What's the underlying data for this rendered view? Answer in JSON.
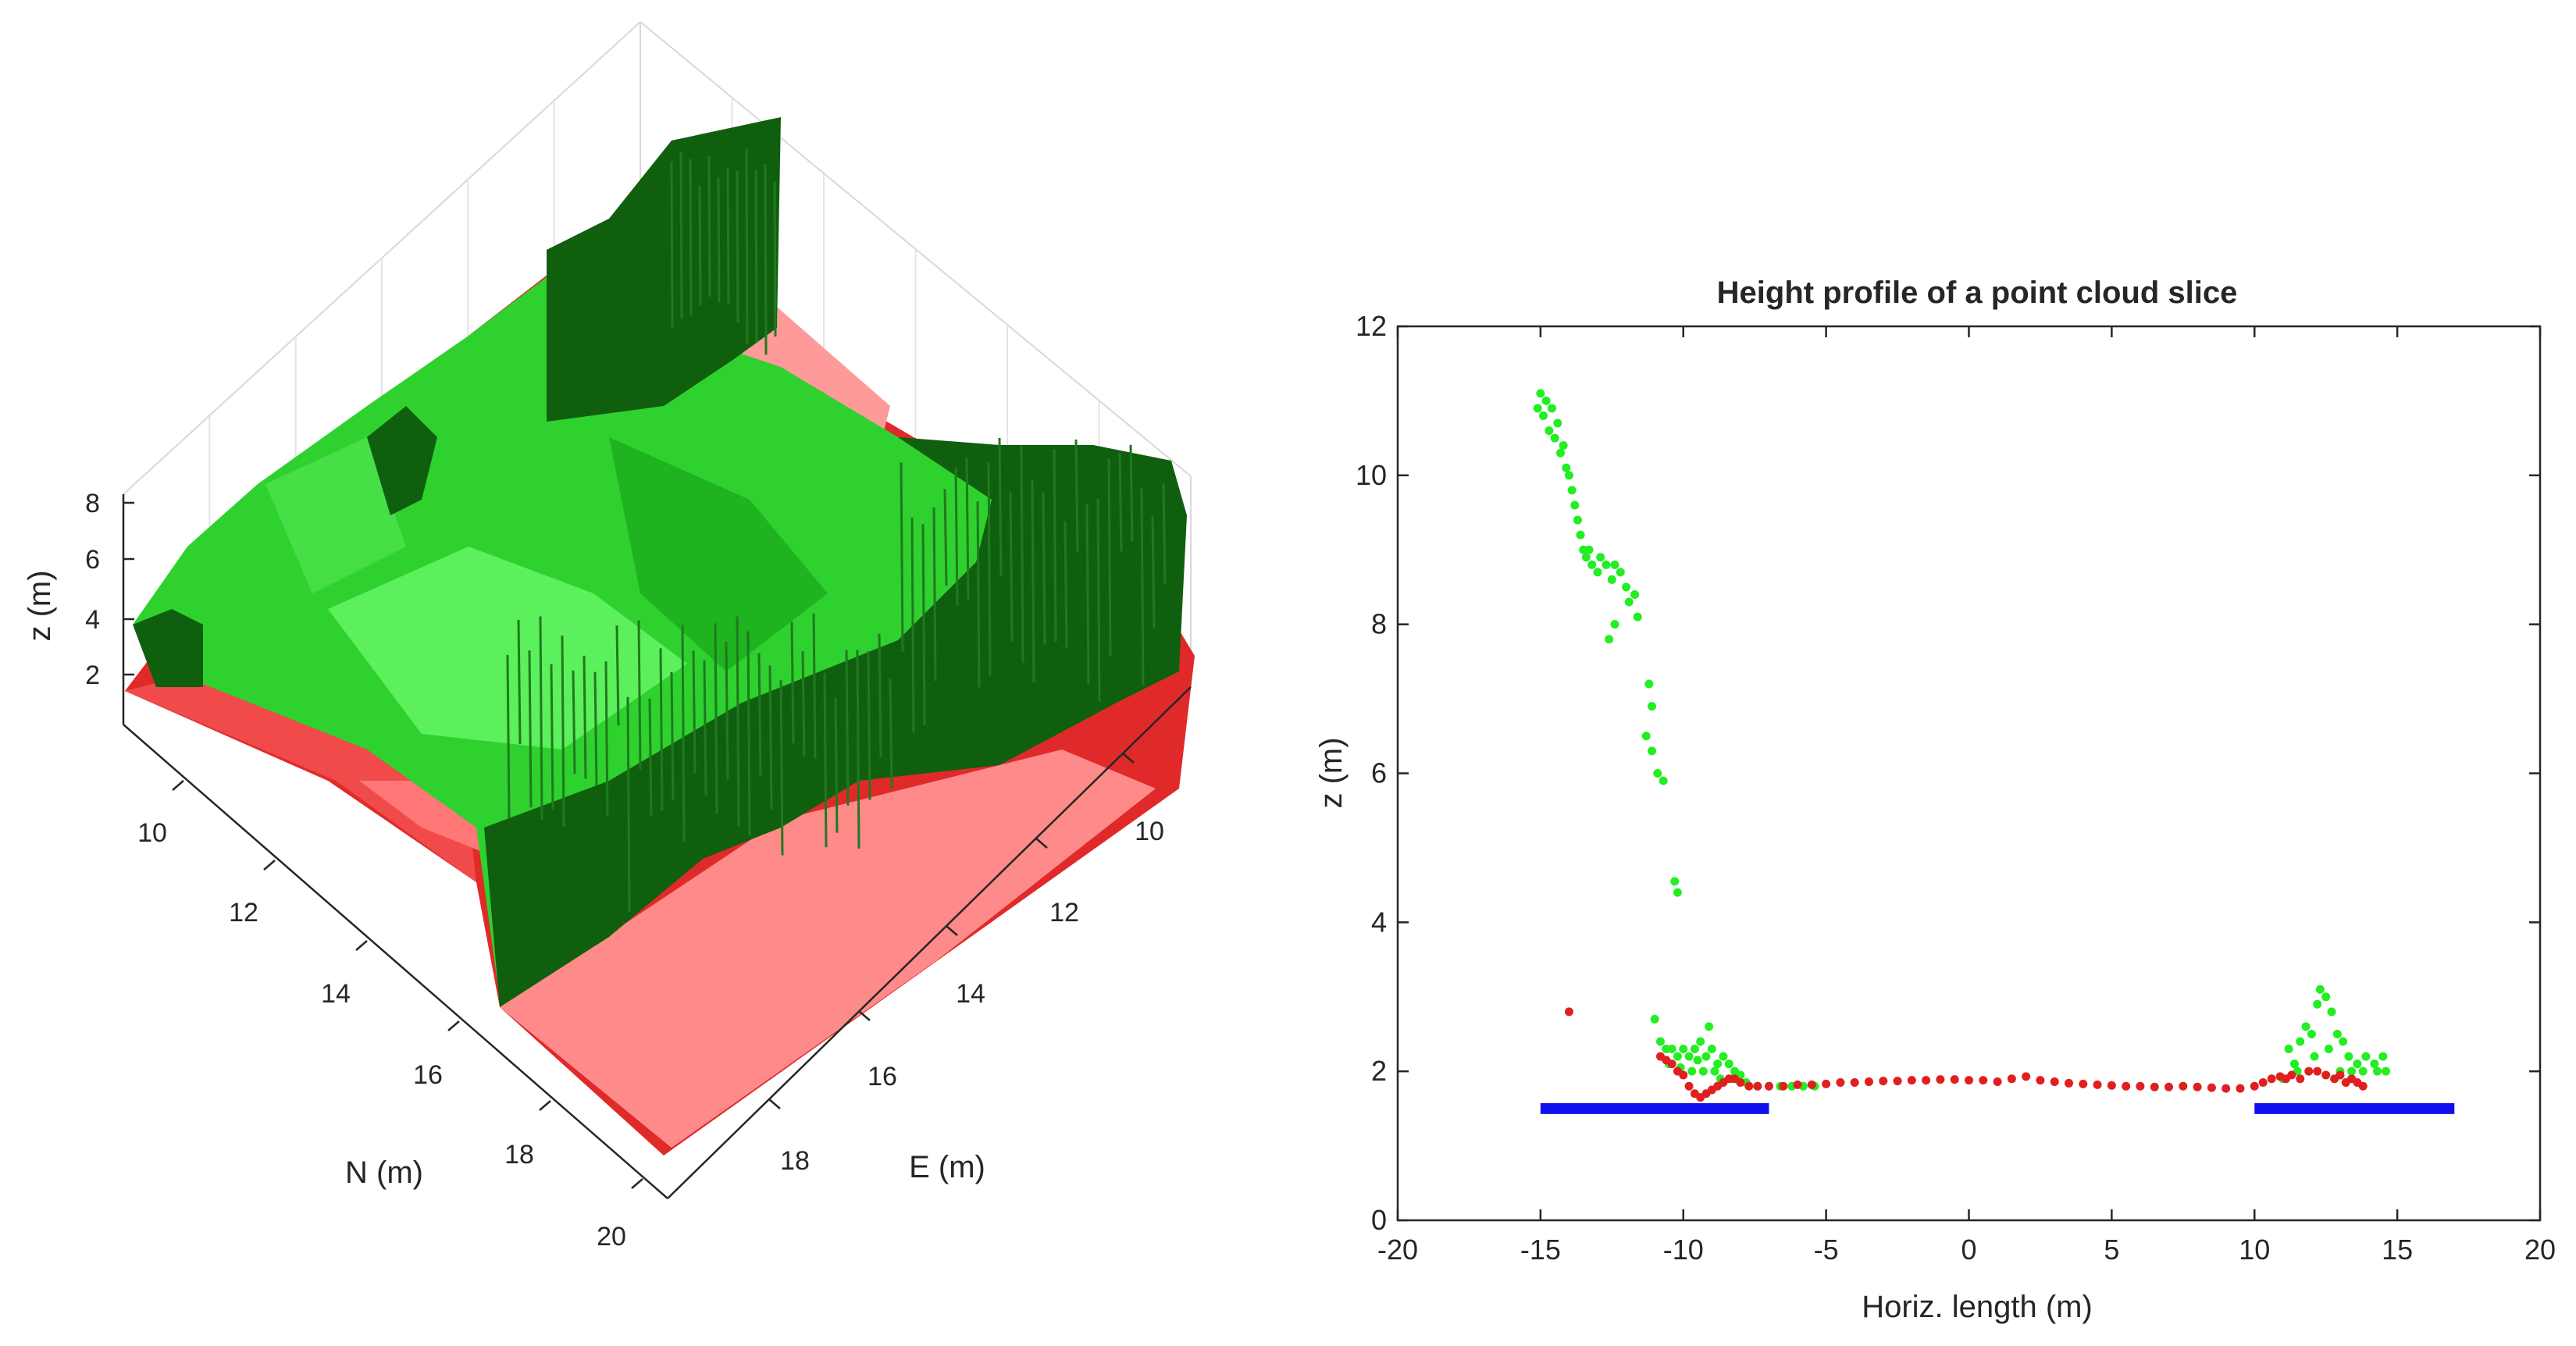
{
  "chart_data": [
    {
      "type": "surface",
      "view": "3d-isometric",
      "xlabel": "E (m)",
      "ylabel": "N (m)",
      "zlabel": "z (m)",
      "x_ticks": [
        "10",
        "12",
        "14",
        "16",
        "18"
      ],
      "y_ticks": [
        "10",
        "12",
        "14",
        "16",
        "18",
        "20"
      ],
      "z_ticks": [
        "2",
        "4",
        "6",
        "8"
      ],
      "xlim": [
        8,
        20
      ],
      "ylim": [
        8,
        20
      ],
      "zlim": [
        1,
        8
      ],
      "series": [
        {
          "color": "#2fd12f",
          "shade": "#0f5f0f"
        },
        {
          "color": "#e02a2a",
          "shade": "#ff8a8a"
        }
      ]
    },
    {
      "type": "scatter",
      "title": "Height profile of a point cloud slice",
      "xlabel": "Horiz. length (m)",
      "ylabel": "z (m)",
      "xlim": [
        -20,
        20
      ],
      "ylim": [
        0,
        12
      ],
      "x_ticks": [
        -20,
        -15,
        -10,
        -5,
        0,
        5,
        10,
        15,
        20
      ],
      "y_ticks": [
        0,
        2,
        4,
        6,
        8,
        10,
        12
      ],
      "series": [
        {
          "color": "#22ee22",
          "points": [
            [
              -15.1,
              10.9
            ],
            [
              -15.0,
              11.1
            ],
            [
              -14.9,
              10.8
            ],
            [
              -14.8,
              11.0
            ],
            [
              -14.7,
              10.6
            ],
            [
              -14.6,
              10.9
            ],
            [
              -14.5,
              10.5
            ],
            [
              -14.4,
              10.7
            ],
            [
              -14.3,
              10.3
            ],
            [
              -14.2,
              10.4
            ],
            [
              -14.1,
              10.1
            ],
            [
              -14.0,
              10.0
            ],
            [
              -13.9,
              9.8
            ],
            [
              -13.8,
              9.6
            ],
            [
              -13.7,
              9.4
            ],
            [
              -13.6,
              9.2
            ],
            [
              -13.5,
              9.0
            ],
            [
              -13.4,
              8.9
            ],
            [
              -13.3,
              9.0
            ],
            [
              -13.2,
              8.8
            ],
            [
              -13.0,
              8.7
            ],
            [
              -12.9,
              8.9
            ],
            [
              -12.7,
              8.8
            ],
            [
              -12.5,
              8.6
            ],
            [
              -12.4,
              8.8
            ],
            [
              -12.2,
              8.7
            ],
            [
              -12.0,
              8.5
            ],
            [
              -11.9,
              8.3
            ],
            [
              -11.7,
              8.4
            ],
            [
              -11.6,
              8.1
            ],
            [
              -12.4,
              8.0
            ],
            [
              -12.6,
              7.8
            ],
            [
              -11.2,
              7.2
            ],
            [
              -11.1,
              6.9
            ],
            [
              -11.3,
              6.5
            ],
            [
              -11.1,
              6.3
            ],
            [
              -10.9,
              6.0
            ],
            [
              -10.7,
              5.9
            ],
            [
              -10.3,
              4.55
            ],
            [
              -10.2,
              4.4
            ],
            [
              -11.0,
              2.7
            ],
            [
              -10.8,
              2.4
            ],
            [
              -10.6,
              2.3
            ],
            [
              -10.4,
              2.3
            ],
            [
              -10.2,
              2.2
            ],
            [
              -10.0,
              2.3
            ],
            [
              -9.8,
              2.2
            ],
            [
              -9.6,
              2.3
            ],
            [
              -9.4,
              2.4
            ],
            [
              -9.2,
              2.2
            ],
            [
              -9.0,
              2.3
            ],
            [
              -8.8,
              2.1
            ],
            [
              -8.6,
              2.2
            ],
            [
              -8.4,
              2.1
            ],
            [
              -8.2,
              2.0
            ],
            [
              -8.0,
              1.95
            ],
            [
              -10.5,
              2.1
            ],
            [
              -10.1,
              2.05
            ],
            [
              -9.7,
              2.0
            ],
            [
              -9.3,
              2.0
            ],
            [
              -8.9,
              2.0
            ],
            [
              -9.1,
              2.6
            ],
            [
              -9.5,
              2.15
            ],
            [
              -8.7,
              1.9
            ],
            [
              -8.3,
              1.9
            ],
            [
              -7.8,
              1.85
            ],
            [
              -7.4,
              1.8
            ],
            [
              -7.0,
              1.8
            ],
            [
              -6.6,
              1.8
            ],
            [
              -6.2,
              1.8
            ],
            [
              -5.8,
              1.8
            ],
            [
              -5.4,
              1.8
            ],
            [
              11.0,
              1.9
            ],
            [
              11.2,
              2.3
            ],
            [
              11.4,
              2.1
            ],
            [
              11.6,
              2.4
            ],
            [
              11.8,
              2.6
            ],
            [
              12.0,
              2.5
            ],
            [
              12.2,
              2.9
            ],
            [
              12.3,
              3.1
            ],
            [
              12.5,
              3.0
            ],
            [
              12.7,
              2.8
            ],
            [
              12.9,
              2.5
            ],
            [
              13.1,
              2.4
            ],
            [
              13.3,
              2.2
            ],
            [
              13.6,
              2.1
            ],
            [
              13.9,
              2.2
            ],
            [
              14.2,
              2.1
            ],
            [
              14.5,
              2.2
            ],
            [
              11.5,
              2.0
            ],
            [
              12.1,
              2.2
            ],
            [
              12.6,
              2.3
            ],
            [
              13.0,
              2.0
            ],
            [
              13.4,
              2.0
            ],
            [
              13.8,
              2.0
            ],
            [
              14.3,
              2.0
            ],
            [
              14.6,
              2.0
            ]
          ]
        },
        {
          "color": "#e01f1f",
          "points": [
            [
              -14.0,
              2.8
            ],
            [
              -10.8,
              2.2
            ],
            [
              -10.6,
              2.15
            ],
            [
              -10.4,
              2.1
            ],
            [
              -10.2,
              2.0
            ],
            [
              -10.0,
              1.95
            ],
            [
              -9.8,
              1.8
            ],
            [
              -9.6,
              1.7
            ],
            [
              -9.4,
              1.65
            ],
            [
              -9.2,
              1.7
            ],
            [
              -9.0,
              1.75
            ],
            [
              -8.8,
              1.8
            ],
            [
              -8.6,
              1.85
            ],
            [
              -8.4,
              1.9
            ],
            [
              -8.2,
              1.9
            ],
            [
              -8.0,
              1.85
            ],
            [
              -7.7,
              1.8
            ],
            [
              -7.4,
              1.8
            ],
            [
              -7.0,
              1.8
            ],
            [
              -6.5,
              1.8
            ],
            [
              -6.0,
              1.82
            ],
            [
              -5.5,
              1.82
            ],
            [
              -5.0,
              1.83
            ],
            [
              -4.5,
              1.85
            ],
            [
              -4.0,
              1.85
            ],
            [
              -3.5,
              1.86
            ],
            [
              -3.0,
              1.87
            ],
            [
              -2.5,
              1.87
            ],
            [
              -2.0,
              1.88
            ],
            [
              -1.5,
              1.88
            ],
            [
              -1.0,
              1.89
            ],
            [
              -0.5,
              1.89
            ],
            [
              0.0,
              1.88
            ],
            [
              0.5,
              1.88
            ],
            [
              1.0,
              1.86
            ],
            [
              1.5,
              1.9
            ],
            [
              2.0,
              1.93
            ],
            [
              2.5,
              1.88
            ],
            [
              3.0,
              1.86
            ],
            [
              3.5,
              1.84
            ],
            [
              4.0,
              1.83
            ],
            [
              4.5,
              1.82
            ],
            [
              5.0,
              1.81
            ],
            [
              5.5,
              1.8
            ],
            [
              6.0,
              1.8
            ],
            [
              6.5,
              1.79
            ],
            [
              7.0,
              1.79
            ],
            [
              7.5,
              1.8
            ],
            [
              8.0,
              1.79
            ],
            [
              8.5,
              1.78
            ],
            [
              9.0,
              1.77
            ],
            [
              9.5,
              1.77
            ],
            [
              10.0,
              1.8
            ],
            [
              10.3,
              1.85
            ],
            [
              10.6,
              1.9
            ],
            [
              10.9,
              1.93
            ],
            [
              11.1,
              1.9
            ],
            [
              11.3,
              1.95
            ],
            [
              11.6,
              1.9
            ],
            [
              11.9,
              2.0
            ],
            [
              12.2,
              2.0
            ],
            [
              12.5,
              1.95
            ],
            [
              12.8,
              1.9
            ],
            [
              13.0,
              1.95
            ],
            [
              13.2,
              1.85
            ],
            [
              13.4,
              1.9
            ],
            [
              13.6,
              1.85
            ],
            [
              13.8,
              1.8
            ]
          ]
        },
        {
          "color": "#1010ee",
          "segments": [
            [
              [
                -15,
                1.5
              ],
              [
                -7,
                1.5
              ]
            ],
            [
              [
                10,
                1.5
              ],
              [
                17,
                1.5
              ]
            ]
          ]
        }
      ]
    }
  ]
}
